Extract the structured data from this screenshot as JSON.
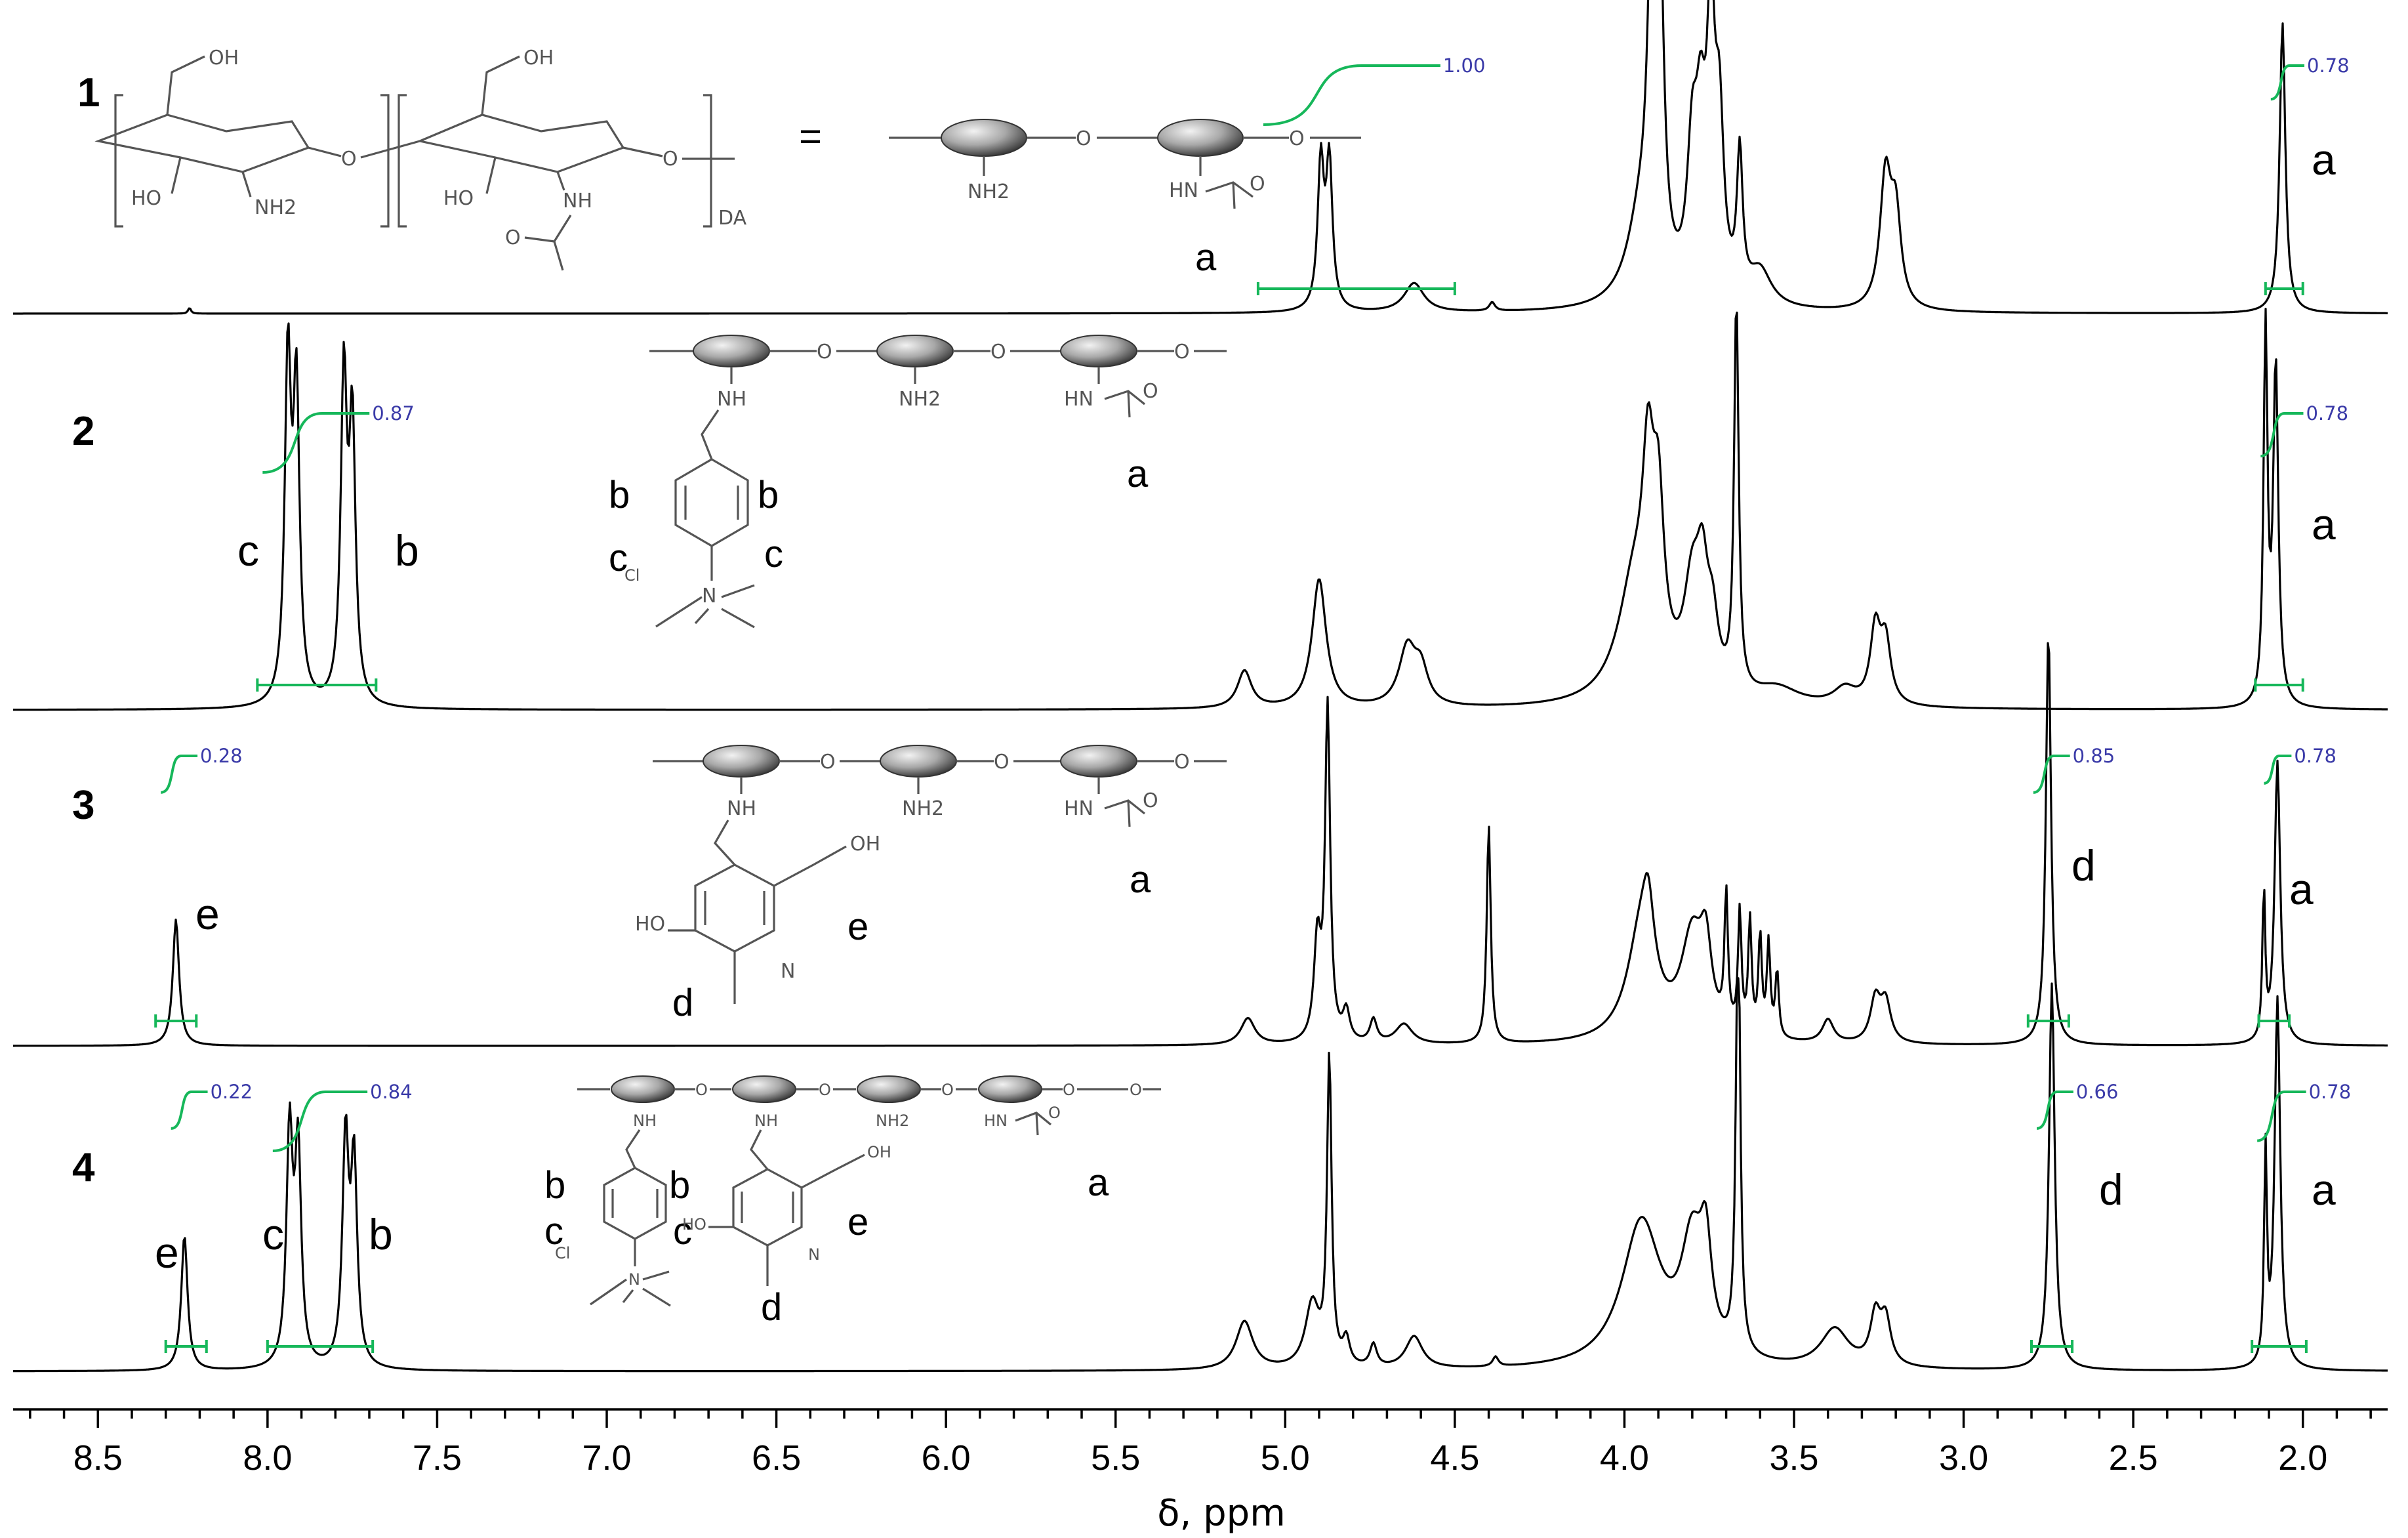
{
  "chart_data": {
    "type": "line",
    "xlabel": "δ, ppm",
    "xlim": [
      8.75,
      1.75
    ],
    "ticks": [
      "8.5",
      "8.0",
      "7.5",
      "7.0",
      "6.5",
      "6.0",
      "5.5",
      "5.0",
      "4.5",
      "4.0",
      "3.5",
      "3.0",
      "2.5",
      "2.0"
    ],
    "tick_values": [
      8.5,
      8.0,
      7.5,
      7.0,
      6.5,
      6.0,
      5.5,
      5.0,
      4.5,
      4.0,
      3.5,
      3.0,
      2.5,
      2.0
    ],
    "series": [
      {
        "name": "1",
        "peaks": [
          [
            8.23,
            0.02,
            0.005
          ],
          [
            4.895,
            0.5,
            0.011
          ],
          [
            4.87,
            0.5,
            0.011
          ],
          [
            4.62,
            0.1,
            0.035
          ],
          [
            4.39,
            0.03,
            0.01
          ],
          [
            3.95,
            0.3,
            0.05
          ],
          [
            3.92,
            1.0,
            0.014
          ],
          [
            3.895,
            1.0,
            0.014
          ],
          [
            3.8,
            0.45,
            0.018
          ],
          [
            3.775,
            0.5,
            0.018
          ],
          [
            3.745,
            0.88,
            0.014
          ],
          [
            3.72,
            0.55,
            0.015
          ],
          [
            3.66,
            0.48,
            0.01
          ],
          [
            3.6,
            0.12,
            0.04
          ],
          [
            3.23,
            0.45,
            0.02
          ],
          [
            3.2,
            0.3,
            0.018
          ],
          [
            2.06,
            1.0,
            0.01
          ]
        ],
        "integrals": [
          {
            "label": "1.00",
            "from": 5.08,
            "to": 4.5
          },
          {
            "label": "0.78",
            "from": 2.11,
            "to": 2.0
          }
        ],
        "peak_labels": [
          {
            "text": "a",
            "at": "acetyl CH3"
          }
        ]
      },
      {
        "name": "2",
        "peaks": [
          [
            7.94,
            1.0,
            0.011
          ],
          [
            7.915,
            0.9,
            0.011
          ],
          [
            7.775,
            0.95,
            0.011
          ],
          [
            7.75,
            0.8,
            0.011
          ],
          [
            5.12,
            0.11,
            0.025
          ],
          [
            4.9,
            0.38,
            0.025
          ],
          [
            4.64,
            0.17,
            0.03
          ],
          [
            4.6,
            0.1,
            0.025
          ],
          [
            3.97,
            0.35,
            0.06
          ],
          [
            3.93,
            0.5,
            0.02
          ],
          [
            3.9,
            0.45,
            0.02
          ],
          [
            3.8,
            0.3,
            0.03
          ],
          [
            3.77,
            0.28,
            0.02
          ],
          [
            3.74,
            0.18,
            0.02
          ],
          [
            3.67,
            1.15,
            0.008
          ],
          [
            3.55,
            0.05,
            0.08
          ],
          [
            3.26,
            0.22,
            0.018
          ],
          [
            3.23,
            0.18,
            0.018
          ],
          [
            3.35,
            0.05,
            0.04
          ],
          [
            2.11,
            1.1,
            0.007
          ],
          [
            2.08,
            1.0,
            0.009
          ]
        ],
        "integrals": [
          {
            "label": "0.87",
            "from": 8.03,
            "to": 7.68
          },
          {
            "label": "0.78",
            "from": 2.14,
            "to": 2.0
          }
        ],
        "peak_labels": [
          {
            "text": "c"
          },
          {
            "text": "b"
          },
          {
            "text": "a"
          }
        ]
      },
      {
        "name": "3",
        "peaks": [
          [
            8.27,
            0.38,
            0.011
          ],
          [
            5.11,
            0.08,
            0.025
          ],
          [
            4.905,
            0.3,
            0.012
          ],
          [
            4.875,
            1.0,
            0.009
          ],
          [
            4.82,
            0.09,
            0.012
          ],
          [
            4.74,
            0.07,
            0.012
          ],
          [
            4.65,
            0.06,
            0.03
          ],
          [
            4.4,
            0.66,
            0.007
          ],
          [
            3.95,
            0.33,
            0.05
          ],
          [
            3.93,
            0.2,
            0.02
          ],
          [
            3.8,
            0.3,
            0.04
          ],
          [
            3.76,
            0.22,
            0.02
          ],
          [
            3.7,
            0.4,
            0.006
          ],
          [
            3.66,
            0.36,
            0.006
          ],
          [
            3.63,
            0.34,
            0.006
          ],
          [
            3.6,
            0.3,
            0.006
          ],
          [
            3.575,
            0.28,
            0.006
          ],
          [
            3.55,
            0.2,
            0.006
          ],
          [
            3.4,
            0.07,
            0.02
          ],
          [
            3.26,
            0.13,
            0.018
          ],
          [
            3.23,
            0.12,
            0.018
          ],
          [
            2.75,
            1.25,
            0.009
          ],
          [
            2.115,
            0.45,
            0.005
          ],
          [
            2.075,
            0.85,
            0.01
          ]
        ],
        "integrals": [
          {
            "label": "0.28",
            "from": 8.33,
            "to": 8.21
          },
          {
            "label": "0.85",
            "from": 2.81,
            "to": 2.69
          },
          {
            "label": "0.78",
            "from": 2.13,
            "to": 2.04
          }
        ],
        "peak_labels": [
          {
            "text": "e"
          },
          {
            "text": "d"
          },
          {
            "text": "a"
          }
        ]
      },
      {
        "name": "4",
        "peaks": [
          [
            8.245,
            0.42,
            0.011
          ],
          [
            7.935,
            0.72,
            0.011
          ],
          [
            7.91,
            0.66,
            0.011
          ],
          [
            7.77,
            0.7,
            0.011
          ],
          [
            7.745,
            0.62,
            0.011
          ],
          [
            5.12,
            0.15,
            0.03
          ],
          [
            4.92,
            0.2,
            0.025
          ],
          [
            4.87,
            0.95,
            0.008
          ],
          [
            4.82,
            0.08,
            0.012
          ],
          [
            4.74,
            0.07,
            0.012
          ],
          [
            4.62,
            0.1,
            0.03
          ],
          [
            4.38,
            0.03,
            0.01
          ],
          [
            3.95,
            0.45,
            0.07
          ],
          [
            3.8,
            0.35,
            0.04
          ],
          [
            3.76,
            0.28,
            0.02
          ],
          [
            3.665,
            1.5,
            0.007
          ],
          [
            3.38,
            0.12,
            0.05
          ],
          [
            3.26,
            0.15,
            0.018
          ],
          [
            3.23,
            0.14,
            0.018
          ],
          [
            2.74,
            1.2,
            0.01
          ],
          [
            2.11,
            0.65,
            0.005
          ],
          [
            2.075,
            1.15,
            0.01
          ]
        ],
        "integrals": [
          {
            "label": "0.22",
            "from": 8.3,
            "to": 8.18
          },
          {
            "label": "0.84",
            "from": 8.0,
            "to": 7.69
          },
          {
            "label": "0.66",
            "from": 2.8,
            "to": 2.68
          },
          {
            "label": "0.78",
            "from": 2.15,
            "to": 1.99
          }
        ],
        "peak_labels": [
          {
            "text": "e"
          },
          {
            "text": "c"
          },
          {
            "text": "b"
          },
          {
            "text": "d"
          },
          {
            "text": "a"
          }
        ]
      }
    ]
  },
  "structure_text": {
    "equals": "=",
    "oh": "OH",
    "ho": "HO",
    "nh2": "NH2",
    "nh": "NH",
    "hn": "HN",
    "o": "O",
    "n": "N",
    "cl": "Cl",
    "da": "DA",
    "a": "a",
    "b": "b",
    "c": "c",
    "d": "d",
    "e": "e"
  }
}
